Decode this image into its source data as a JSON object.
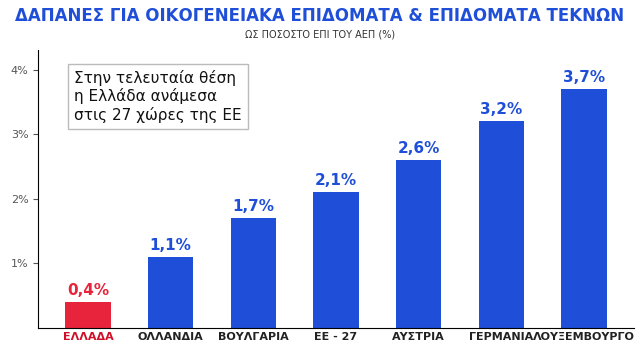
{
  "chart_data": {
    "type": "bar",
    "title": "ΔΑΠΑΝΕΣ ΓΙΑ ΟΙΚΟΓΕΝΕΙΑΚΑ ΕΠΙΔΟΜΑΤΑ & ΕΠΙΔΟΜΑΤΑ ΤΕΚΝΩΝ",
    "subtitle": "ΩΣ ΠΟΣΟΣΤΟ ΕΠΙ ΤΟΥ ΑΕΠ (%)",
    "annotation": "Στην τελευταία θέση\nη Ελλάδα ανάμεσα\nστις 27 χώρες της ΕΕ",
    "categories": [
      "ΕΛΛΑΔΑ",
      "ΟΛΛΑΝΔΙΑ",
      "ΒΟΥΛΓΑΡΙΑ",
      "ΕΕ - 27",
      "ΑΥΣΤΡΙΑ",
      "ΓΕΡΜΑΝΙΑ",
      "ΛΟΥΞΕΜΒΟΥΡΓΟ"
    ],
    "values": [
      0.4,
      1.1,
      1.7,
      2.1,
      2.6,
      3.2,
      3.7
    ],
    "value_labels": [
      "0,4%",
      "1,1%",
      "1,7%",
      "2,1%",
      "2,6%",
      "3,2%",
      "3,7%"
    ],
    "colors": [
      "#e8243c",
      "#1f4fd8",
      "#1f4fd8",
      "#1f4fd8",
      "#1f4fd8",
      "#1f4fd8",
      "#1f4fd8"
    ],
    "ylim": [
      0,
      4.3
    ],
    "yticks": [
      {
        "value": 1,
        "label": "1%"
      },
      {
        "value": 2,
        "label": "2%"
      },
      {
        "value": 3,
        "label": "3%"
      },
      {
        "value": 4,
        "label": "4%"
      }
    ],
    "grid": false,
    "data_labels": true
  }
}
